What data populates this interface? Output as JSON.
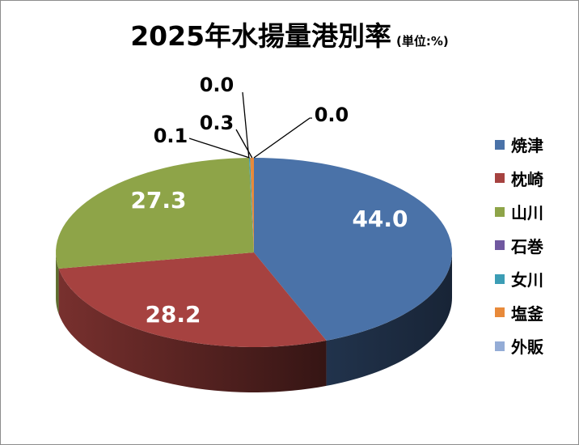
{
  "chart_data": {
    "type": "pie",
    "style": "3d",
    "title": "2025年水揚量港別率",
    "unit_label": "(単位:%)",
    "categories": [
      "焼津",
      "枕崎",
      "山川",
      "石巻",
      "女川",
      "塩釜",
      "外販"
    ],
    "values": [
      44.0,
      28.2,
      27.3,
      0.0,
      0.1,
      0.3,
      0.0
    ],
    "data_labels": [
      "44.0",
      "28.2",
      "27.3",
      "0.0",
      "0.1",
      "0.3",
      "0.0"
    ],
    "colors": [
      "#4a72a8",
      "#a64240",
      "#8ea448",
      "#7058a0",
      "#3c9db5",
      "#e88a3a",
      "#94acd6"
    ],
    "legend_position": "right"
  }
}
